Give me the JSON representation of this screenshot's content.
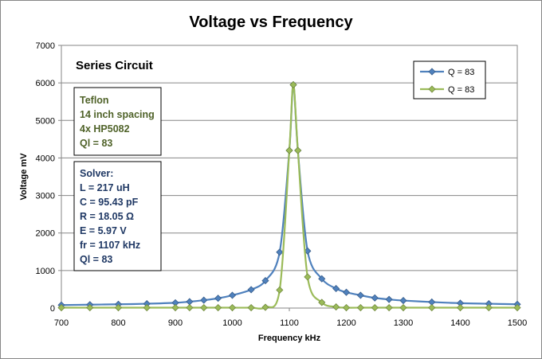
{
  "chart_data": {
    "type": "line",
    "title": "Voltage vs Frequency",
    "xlabel": "Frequency kHz",
    "ylabel": "Voltage mV",
    "xlim": [
      700,
      1500
    ],
    "ylim": [
      0,
      7000
    ],
    "x_ticks": [
      700,
      800,
      900,
      1000,
      1100,
      1200,
      1300,
      1400,
      1500
    ],
    "y_ticks": [
      0,
      1000,
      2000,
      3000,
      4000,
      5000,
      6000,
      7000
    ],
    "grid": "horizontal",
    "legend_position": "top-right",
    "series": [
      {
        "name": "Q = 83",
        "color": "#4f81bd",
        "marker": "diamond",
        "x": [
          700,
          750,
          800,
          850,
          900,
          925,
          950,
          975,
          1000,
          1033,
          1058,
          1083,
          1100,
          1107,
          1115,
          1132,
          1157,
          1182,
          1200,
          1225,
          1250,
          1275,
          1300,
          1350,
          1400,
          1450,
          1500
        ],
        "y": [
          80,
          90,
          100,
          115,
          140,
          170,
          210,
          260,
          340,
          490,
          730,
          1490,
          4200,
          5950,
          4200,
          1520,
          780,
          520,
          420,
          340,
          270,
          230,
          200,
          160,
          130,
          115,
          100
        ]
      },
      {
        "name": "Q = 83",
        "color": "#9bbb59",
        "marker": "diamond",
        "x": [
          700,
          750,
          800,
          850,
          900,
          925,
          950,
          975,
          1000,
          1033,
          1058,
          1083,
          1100,
          1107,
          1115,
          1132,
          1157,
          1182,
          1200,
          1225,
          1250,
          1275,
          1300,
          1350,
          1400,
          1450,
          1500
        ],
        "y": [
          10,
          10,
          10,
          10,
          10,
          10,
          10,
          10,
          10,
          10,
          20,
          480,
          4200,
          5950,
          4200,
          830,
          150,
          30,
          10,
          10,
          10,
          10,
          10,
          10,
          10,
          10,
          10
        ]
      }
    ],
    "annotations": {
      "heading": "Series Circuit",
      "box1": [
        "Teflon",
        "14 inch spacing",
        "4x HP5082",
        "Ql = 83"
      ],
      "box2": [
        "Solver:",
        "L = 217  uH",
        "C = 95.43  pF",
        "R = 18.05  Ω",
        "E = 5.97  V",
        "fr = 1107  kHz",
        "Ql = 83"
      ]
    }
  }
}
